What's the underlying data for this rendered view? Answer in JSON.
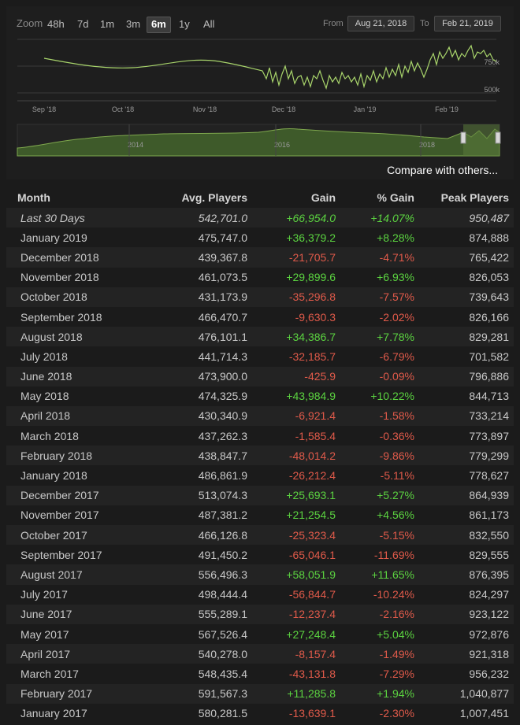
{
  "chart": {
    "zoom_label": "Zoom",
    "zoom_options": [
      "48h",
      "7d",
      "1m",
      "3m",
      "6m",
      "1y",
      "All"
    ],
    "zoom_active": "6m",
    "from_label": "From",
    "from_value": "Aug 21, 2018",
    "to_label": "To",
    "to_value": "Feb 21, 2019",
    "y_ticks": [
      "750k",
      "500k"
    ],
    "x_ticks": [
      "Sep '18",
      "Oct '18",
      "Nov '18",
      "Dec '18",
      "Jan '19",
      "Feb '19"
    ],
    "navigator_years": [
      "2014",
      "2016",
      "2018"
    ],
    "line_color": "#a8d46b",
    "compare_link": "Compare with others..."
  },
  "table": {
    "headers": [
      "Month",
      "Avg. Players",
      "Gain",
      "% Gain",
      "Peak Players"
    ],
    "rows": [
      [
        "Last 30 Days",
        "542,701.0",
        "+66,954.0",
        "+14.07%",
        "950,487"
      ],
      [
        "January 2019",
        "475,747.0",
        "+36,379.2",
        "+8.28%",
        "874,888"
      ],
      [
        "December 2018",
        "439,367.8",
        "-21,705.7",
        "-4.71%",
        "765,422"
      ],
      [
        "November 2018",
        "461,073.5",
        "+29,899.6",
        "+6.93%",
        "826,053"
      ],
      [
        "October 2018",
        "431,173.9",
        "-35,296.8",
        "-7.57%",
        "739,643"
      ],
      [
        "September 2018",
        "466,470.7",
        "-9,630.3",
        "-2.02%",
        "826,166"
      ],
      [
        "August 2018",
        "476,101.1",
        "+34,386.7",
        "+7.78%",
        "829,281"
      ],
      [
        "July 2018",
        "441,714.3",
        "-32,185.7",
        "-6.79%",
        "701,582"
      ],
      [
        "June 2018",
        "473,900.0",
        "-425.9",
        "-0.09%",
        "796,886"
      ],
      [
        "May 2018",
        "474,325.9",
        "+43,984.9",
        "+10.22%",
        "844,713"
      ],
      [
        "April 2018",
        "430,340.9",
        "-6,921.4",
        "-1.58%",
        "733,214"
      ],
      [
        "March 2018",
        "437,262.3",
        "-1,585.4",
        "-0.36%",
        "773,897"
      ],
      [
        "February 2018",
        "438,847.7",
        "-48,014.2",
        "-9.86%",
        "779,299"
      ],
      [
        "January 2018",
        "486,861.9",
        "-26,212.4",
        "-5.11%",
        "778,627"
      ],
      [
        "December 2017",
        "513,074.3",
        "+25,693.1",
        "+5.27%",
        "864,939"
      ],
      [
        "November 2017",
        "487,381.2",
        "+21,254.5",
        "+4.56%",
        "861,173"
      ],
      [
        "October 2017",
        "466,126.8",
        "-25,323.4",
        "-5.15%",
        "832,550"
      ],
      [
        "September 2017",
        "491,450.2",
        "-65,046.1",
        "-11.69%",
        "829,555"
      ],
      [
        "August 2017",
        "556,496.3",
        "+58,051.9",
        "+11.65%",
        "876,395"
      ],
      [
        "July 2017",
        "498,444.4",
        "-56,844.7",
        "-10.24%",
        "824,297"
      ],
      [
        "June 2017",
        "555,289.1",
        "-12,237.4",
        "-2.16%",
        "923,122"
      ],
      [
        "May 2017",
        "567,526.4",
        "+27,248.4",
        "+5.04%",
        "972,876"
      ],
      [
        "April 2017",
        "540,278.0",
        "-8,157.4",
        "-1.49%",
        "921,318"
      ],
      [
        "March 2017",
        "548,435.4",
        "-43,131.8",
        "-7.29%",
        "956,232"
      ],
      [
        "February 2017",
        "591,567.3",
        "+11,285.8",
        "+1.94%",
        "1,040,877"
      ],
      [
        "January 2017",
        "580,281.5",
        "-13,639.1",
        "-2.30%",
        "1,007,451"
      ]
    ]
  }
}
